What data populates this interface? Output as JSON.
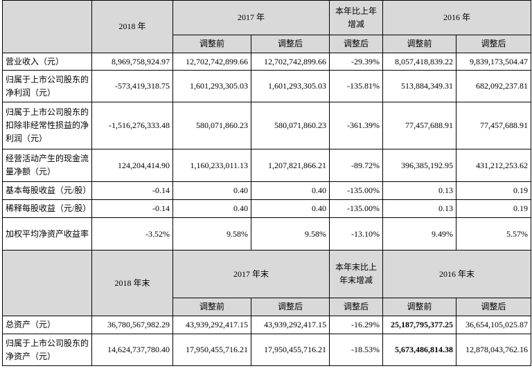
{
  "header1": {
    "col_2018": "2018 年",
    "col_2017": "2017 年",
    "col_change": "本年比上年增减",
    "col_2016": "2016 年",
    "before": "调整前",
    "after": "调整后"
  },
  "rows1": [
    {
      "label": "营业收入（元）",
      "v2018": "8,969,758,924.97",
      "v2017a": "12,702,742,899.66",
      "v2017b": "12,702,742,899.66",
      "chg": "-29.39%",
      "v2016a": "8,057,418,839.22",
      "v2016b": "9,839,173,504.47"
    },
    {
      "label": "归属于上市公司股东的净利润（元）",
      "v2018": "-573,419,318.75",
      "v2017a": "1,601,293,305.03",
      "v2017b": "1,601,293,305.03",
      "chg": "-135.81%",
      "v2016a": "513,884,349.31",
      "v2016b": "682,092,237.81"
    },
    {
      "label": "归属于上市公司股东的扣除非经常性损益的净利润（元）",
      "v2018": "-1,516,276,333.48",
      "v2017a": "580,071,860.23",
      "v2017b": "580,071,860.23",
      "chg": "-361.39%",
      "v2016a": "77,457,688.91",
      "v2016b": "77,457,688.91"
    },
    {
      "label": "经营活动产生的现金流量净额（元）",
      "v2018": "124,204,414.90",
      "v2017a": "1,160,233,011.13",
      "v2017b": "1,207,821,866.21",
      "chg": "-89.72%",
      "v2016a": "396,385,192.95",
      "v2016b": "431,212,253.62"
    },
    {
      "label": "基本每股收益（元/股）",
      "v2018": "-0.14",
      "v2017a": "0.40",
      "v2017b": "0.40",
      "chg": "-135.00%",
      "v2016a": "0.13",
      "v2016b": "0.19"
    },
    {
      "label": "稀释每股收益（元/股）",
      "v2018": "-0.14",
      "v2017a": "0.40",
      "v2017b": "0.40",
      "chg": "-135.00%",
      "v2016a": "0.13",
      "v2016b": "0.19"
    },
    {
      "label": "加权平均净资产收益率",
      "v2018": "-3.52%",
      "v2017a": "9.58%",
      "v2017b": "9.58%",
      "chg": "-13.10%",
      "v2016a": "9.49%",
      "v2016b": "5.57%"
    }
  ],
  "header2": {
    "col_2018": "2018 年末",
    "col_2017": "2017 年末",
    "col_change": "本年末比上年末增减",
    "col_2016": "2016 年末",
    "before": "调整前",
    "after": "调整后"
  },
  "rows2": [
    {
      "label": "总资产（元）",
      "v2018": "36,780,567,982.29",
      "v2017a": "43,939,292,417.15",
      "v2017b": "43,939,292,417.15",
      "chg": "-16.29%",
      "v2016a": "25,187,795,377.25",
      "v2016b": "36,654,105,025.87"
    },
    {
      "label": "归属于上市公司股东的净资产（元）",
      "v2018": "14,624,737,780.40",
      "v2017a": "17,950,455,716.21",
      "v2017b": "17,950,455,716.21",
      "chg": "-18.53%",
      "v2016a": "5,673,486,814.38",
      "v2016b": "12,878,043,762.16"
    }
  ]
}
